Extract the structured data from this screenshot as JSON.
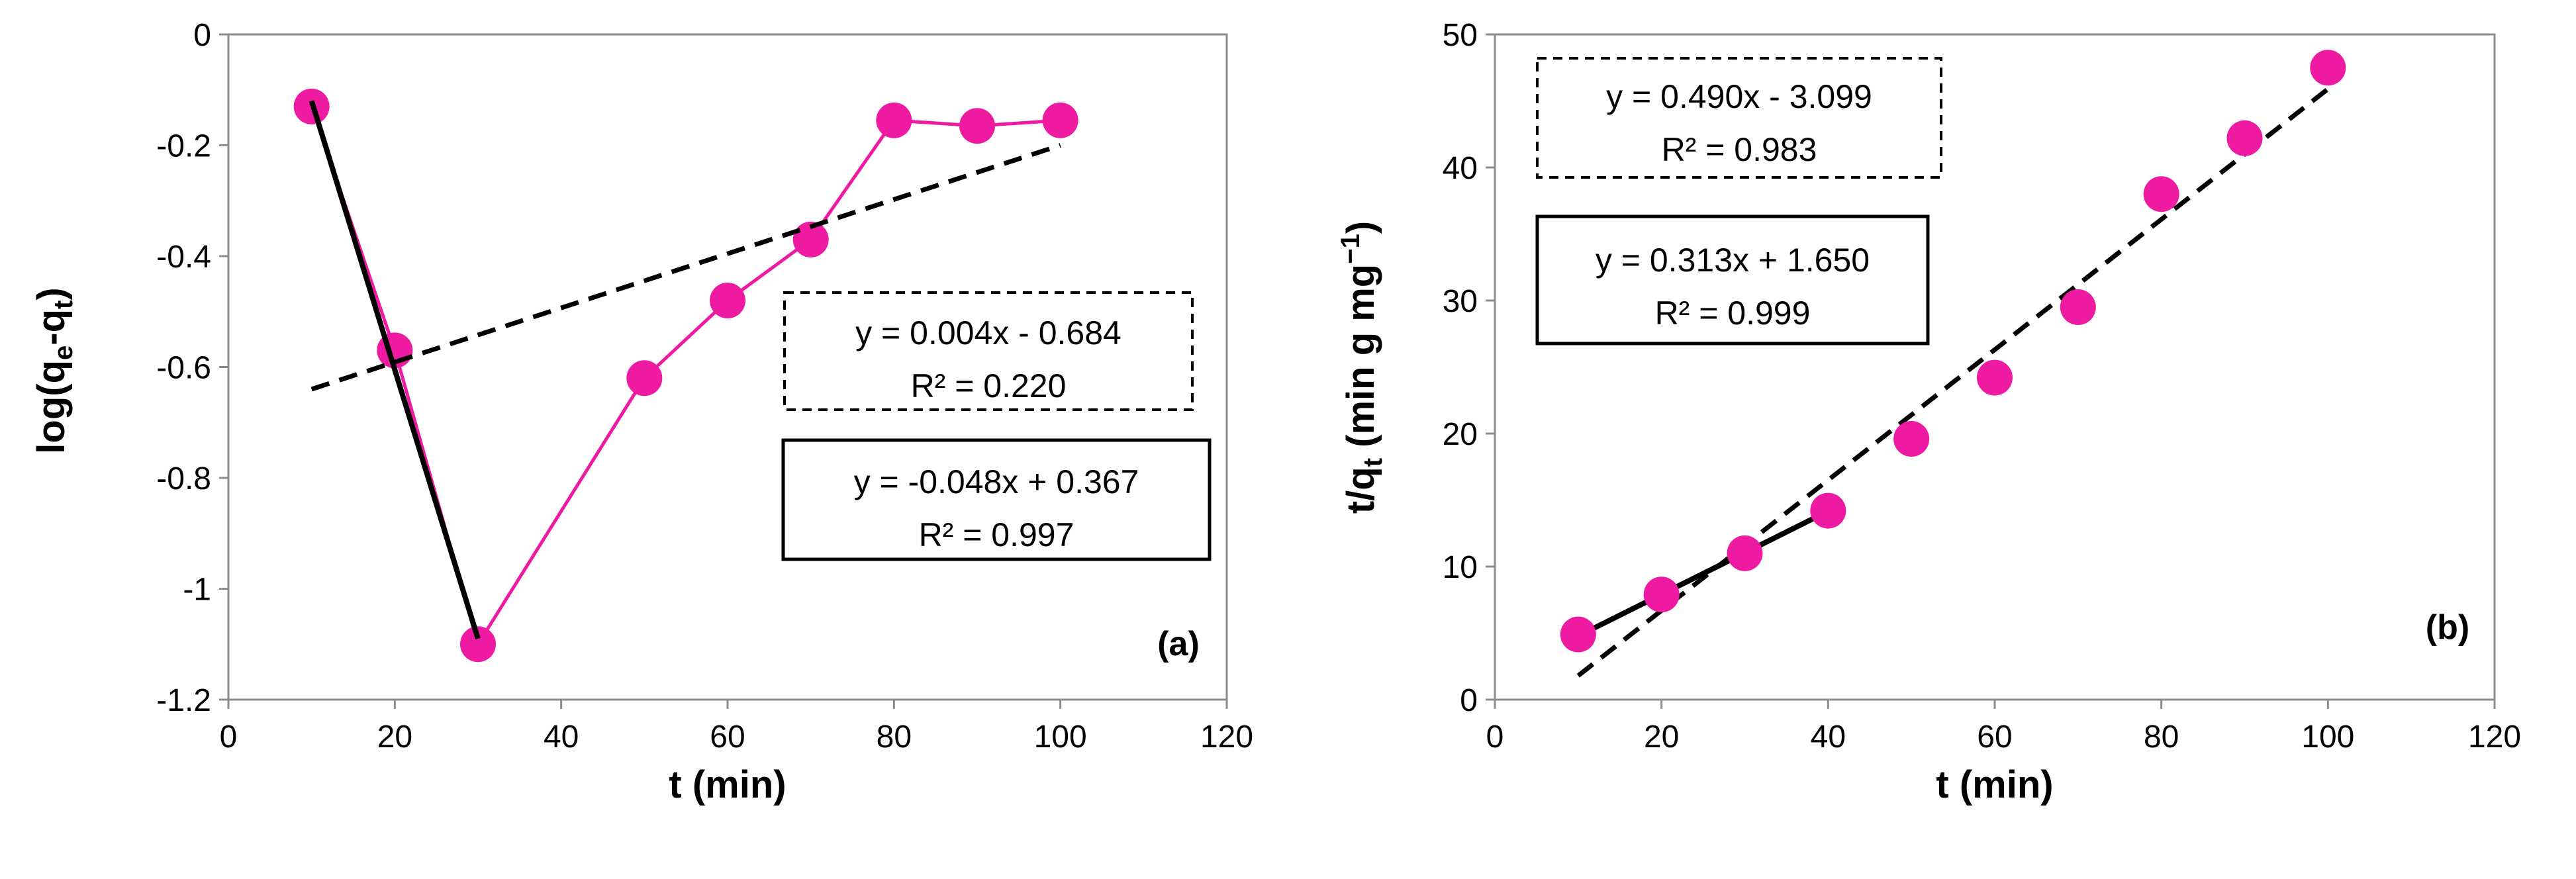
{
  "chart_data": [
    {
      "type": "scatter",
      "panel_label": "(a)",
      "xlabel": "t (min)",
      "ylabel": {
        "base": "log(q",
        "sub1": "e",
        "mid": "-q",
        "sub2": "t",
        "end": ")"
      },
      "xlim": [
        0,
        120
      ],
      "ylim": [
        -1.2,
        0
      ],
      "xticks": [
        0,
        20,
        40,
        60,
        80,
        100,
        120
      ],
      "yticks": [
        -1.2,
        -1,
        -0.8,
        -0.6,
        -0.4,
        -0.2,
        0
      ],
      "ytick_labels": [
        "-1.2",
        "-1",
        "-0.8",
        "-0.6",
        "-0.4",
        "-0.2",
        "0"
      ],
      "series": [
        {
          "name": "data",
          "color": "#ee1aa1",
          "connected": true,
          "x": [
            10,
            20,
            30,
            50,
            60,
            70,
            80,
            90,
            100
          ],
          "y": [
            -0.13,
            -0.57,
            -1.1,
            -0.62,
            -0.48,
            -0.37,
            -0.155,
            -0.165,
            -0.155
          ]
        }
      ],
      "fits": [
        {
          "style": "solid",
          "color": "#000000",
          "x0": 10,
          "x1": 30,
          "slope": -0.048,
          "intercept": 0.367,
          "y0": -0.12,
          "y1": -1.09
        },
        {
          "style": "dashed",
          "color": "#000000",
          "x0": 10,
          "x1": 100,
          "slope": 0.004,
          "intercept": -0.684,
          "y0": -0.64,
          "y1": -0.2
        }
      ],
      "equations": [
        {
          "style": "dashed",
          "line1": "y = 0.004x - 0.684",
          "line2": "R² = 0.220"
        },
        {
          "style": "solid",
          "line1": "y = -0.048x + 0.367",
          "line2": "R² = 0.997"
        }
      ]
    },
    {
      "type": "scatter",
      "panel_label": "(b)",
      "xlabel": "t (min)",
      "ylabel": {
        "base": "t/q",
        "sub1": "t",
        "end": " (min g mg",
        "sup": "−1",
        "close": ")"
      },
      "xlim": [
        0,
        120
      ],
      "ylim": [
        0,
        50
      ],
      "xticks": [
        0,
        20,
        40,
        60,
        80,
        100,
        120
      ],
      "yticks": [
        0,
        10,
        20,
        30,
        40,
        50
      ],
      "ytick_labels": [
        "0",
        "10",
        "20",
        "30",
        "40",
        "50"
      ],
      "series": [
        {
          "name": "data",
          "color": "#ee1aa1",
          "connected": false,
          "x": [
            10,
            20,
            30,
            40,
            50,
            60,
            70,
            80,
            90,
            100
          ],
          "y": [
            4.9,
            7.9,
            11.0,
            14.2,
            19.6,
            24.2,
            29.5,
            38.0,
            42.2,
            47.5
          ]
        }
      ],
      "fits": [
        {
          "style": "solid",
          "color": "#000000",
          "x0": 10,
          "x1": 40,
          "slope": 0.313,
          "intercept": 1.65,
          "y0": 4.78,
          "y1": 14.17
        },
        {
          "style": "dashed",
          "color": "#000000",
          "x0": 10,
          "x1": 100,
          "slope": 0.49,
          "intercept": -3.099,
          "y0": 1.8,
          "y1": 45.9
        }
      ],
      "equations": [
        {
          "style": "dashed",
          "line1": "y = 0.490x - 3.099",
          "line2": "R² = 0.983"
        },
        {
          "style": "solid",
          "line1": "y = 0.313x + 1.650",
          "line2": "R² = 0.999"
        }
      ]
    }
  ]
}
